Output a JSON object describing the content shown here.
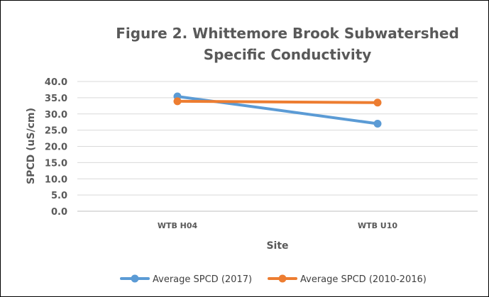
{
  "chart_data": {
    "type": "line",
    "title": "Figure 2. Whittemore Brook Subwatershed",
    "subtitle": "Specific Conductivity",
    "xlabel": "Site",
    "ylabel": "SPCD (uS/cm)",
    "categories": [
      "WTB H04",
      "WTB U10"
    ],
    "ylim": [
      0,
      40
    ],
    "yticks": [
      "40.0",
      "35.0",
      "30.0",
      "25.0",
      "20.0",
      "15.0",
      "10.0",
      "5.0",
      "0.0"
    ],
    "grid": true,
    "legend": "bottom",
    "series": [
      {
        "name": "Average SPCD (2017)",
        "values": [
          35.4,
          27.0
        ],
        "color": "#5b9bd5"
      },
      {
        "name": "Average SPCD (2010-2016)",
        "values": [
          33.9,
          33.5
        ],
        "color": "#ed7d31"
      }
    ]
  }
}
